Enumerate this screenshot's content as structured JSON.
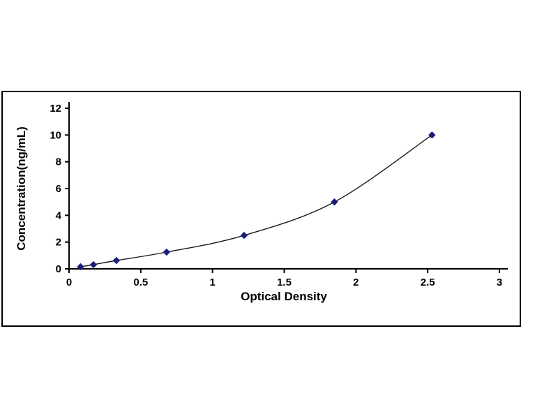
{
  "figure": {
    "background": "#ffffff",
    "border_color": "#000000"
  },
  "chart_data": {
    "type": "line",
    "title": "",
    "xlabel": "Optical Density",
    "ylabel": "Concentration(ng/mL)",
    "x": [
      0.08,
      0.17,
      0.33,
      0.68,
      1.22,
      1.85,
      2.53
    ],
    "y": [
      0.156,
      0.312,
      0.625,
      1.25,
      2.5,
      5,
      10
    ],
    "xlim": [
      0,
      3
    ],
    "ylim": [
      0,
      12
    ],
    "xticks": [
      "0",
      "0.5",
      "1",
      "1.5",
      "2",
      "2.5",
      "3"
    ],
    "xtick_values": [
      0,
      0.5,
      1,
      1.5,
      2,
      2.5,
      3
    ],
    "yticks": [
      "0",
      "2",
      "4",
      "6",
      "8",
      "10",
      "12"
    ],
    "ytick_values": [
      0,
      2,
      4,
      6,
      8,
      10,
      12
    ],
    "grid": false,
    "legend": null,
    "marker": "diamond",
    "marker_color": "#1c1c7a",
    "line_color": "#1a1a1a",
    "axis_color": "#000000"
  }
}
